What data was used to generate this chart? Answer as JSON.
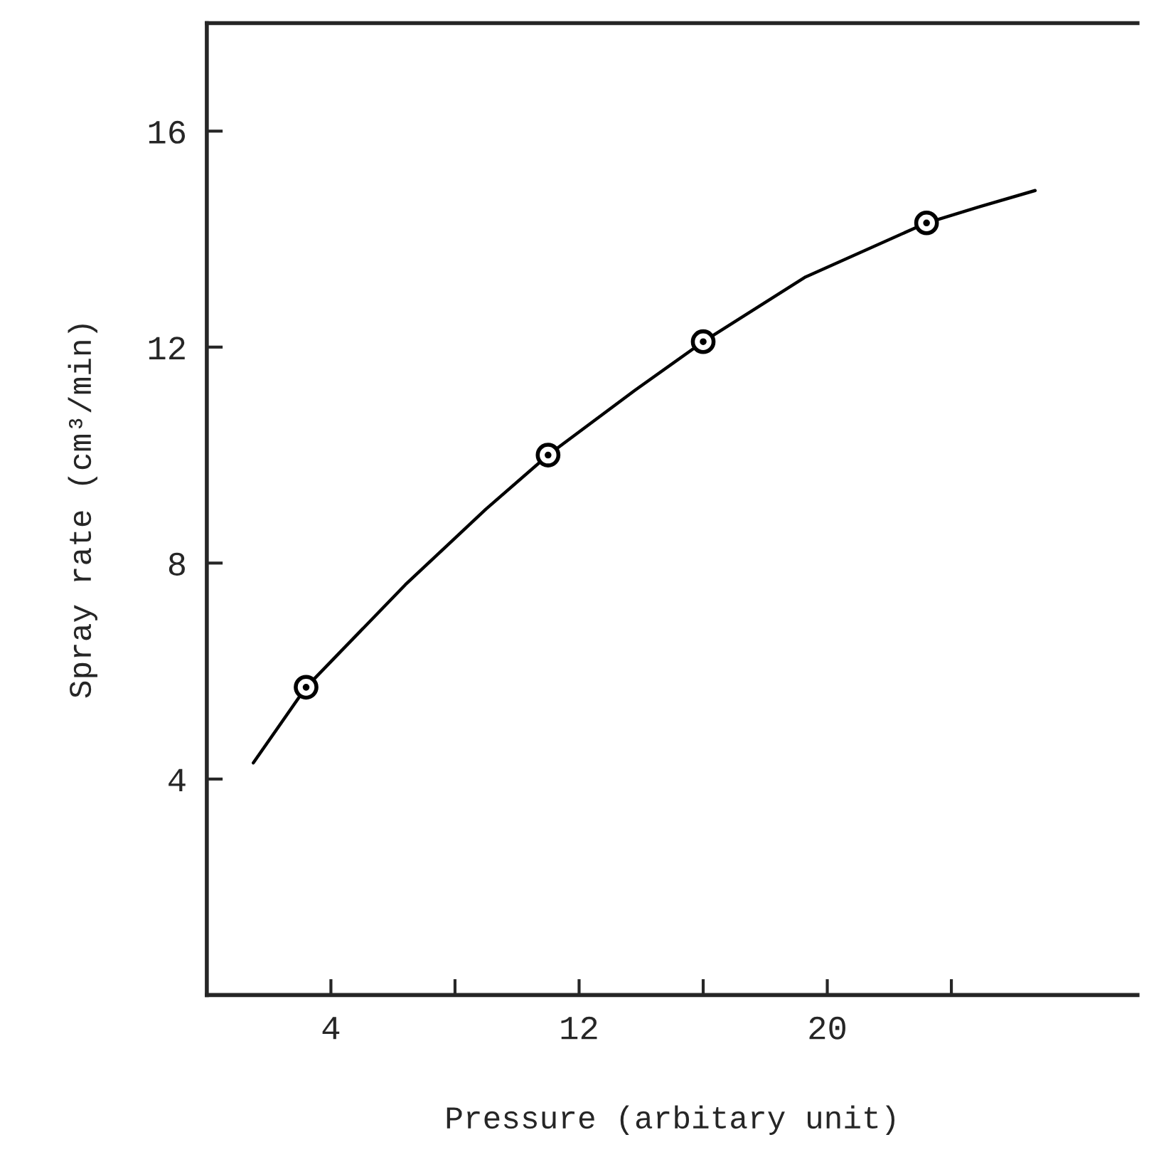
{
  "chart_data": {
    "type": "scatter",
    "xlabel": "Pressure (arbitary unit)",
    "ylabel": "Spray rate (cm³/min)",
    "xlim": [
      0,
      30
    ],
    "ylim": [
      0,
      18
    ],
    "xticks": [
      4,
      {
        "value": 8,
        "label": null
      },
      12,
      {
        "value": 16,
        "label": null
      },
      20,
      {
        "value": 24,
        "label": null
      }
    ],
    "yticks": [
      4,
      8,
      12,
      16
    ],
    "grid": false,
    "marker": "circle",
    "series": [
      {
        "type": "line",
        "color": "#000000",
        "marker": "none",
        "x": [
          1.5,
          3.2,
          6.4,
          9.0,
          11.0,
          13.8,
          16.0,
          19.3,
          23.2,
          24.9,
          26.7
        ],
        "values": [
          4.3,
          5.7,
          7.6,
          9.0,
          10.0,
          11.2,
          12.1,
          13.3,
          14.3,
          14.6,
          14.9
        ]
      },
      {
        "color": "#000000",
        "x": [
          3.2,
          11.0,
          16.0,
          23.2
        ],
        "values": [
          5.7,
          10.0,
          12.1,
          14.3
        ]
      }
    ]
  }
}
